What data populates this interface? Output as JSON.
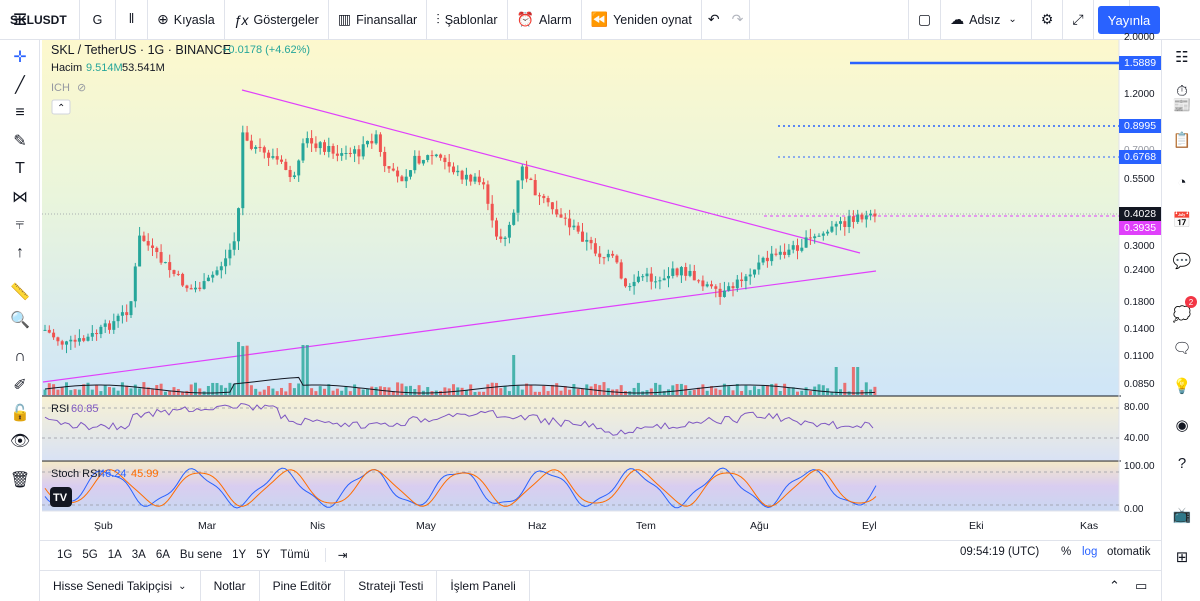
{
  "toolbar": {
    "symbol": "SKLUSDT",
    "interval": "G",
    "compare": "Kıyasla",
    "indicators": "Göstergeler",
    "financials": "Finansallar",
    "templates": "Şablonlar",
    "alert": "Alarm",
    "replay": "Yeniden oynat",
    "layout_name": "Adsız",
    "publish": "Yayınla"
  },
  "legend": {
    "title": "SKL / TetherUS · 1G · BINANCE",
    "change": "+0.0178 (+4.62%)",
    "volume_label": "Hacim",
    "volume_value": "9.514M",
    "volume_ma": "53.541M",
    "ich_label": "ICH",
    "rsi_label": "RSI",
    "rsi_value": "60.85",
    "stoch_label": "Stoch RSI",
    "stoch_k": "46.24",
    "stoch_d": "45.99"
  },
  "price_axis": {
    "ticks": [
      "2.0000",
      "1.2000",
      "0.7000",
      "0.5500",
      "0.3000",
      "0.2400",
      "0.1800",
      "0.1400",
      "0.1100",
      "0.0850"
    ],
    "labels": [
      {
        "value": "1.5889",
        "color": "#2962ff"
      },
      {
        "value": "0.8995",
        "color": "#2962ff"
      },
      {
        "value": "0.6768",
        "color": "#2962ff"
      },
      {
        "value": "0.4028",
        "color": "#131722"
      },
      {
        "value": "0.3935",
        "color": "#e040fb"
      }
    ],
    "rsi_ticks": [
      "80.00",
      "40.00"
    ],
    "stoch_ticks": [
      "100.00",
      "0.00"
    ]
  },
  "time_axis": [
    "Şub",
    "Mar",
    "Nis",
    "May",
    "Haz",
    "Tem",
    "Ağu",
    "Eyl",
    "Eki",
    "Kas"
  ],
  "range_bar": {
    "ranges": [
      "1G",
      "5G",
      "1A",
      "3A",
      "6A",
      "Bu sene",
      "1Y",
      "5Y",
      "Tümü"
    ],
    "clock": "09:54:19 (UTC)",
    "percent": "%",
    "log": "log",
    "auto": "otomatik"
  },
  "bottom_tabs": [
    "Hisse Senedi Takipçisi",
    "Notlar",
    "Pine Editör",
    "Strateji Testi",
    "İşlem Paneli"
  ],
  "notifications_count": "2",
  "colors": {
    "up": "#26a69a",
    "down": "#ef5350",
    "trendline": "#e040fb",
    "level": "#2962ff",
    "rsi": "#7e57c2",
    "stoch_k": "#2962ff",
    "stoch_d": "#ff6d00"
  }
}
